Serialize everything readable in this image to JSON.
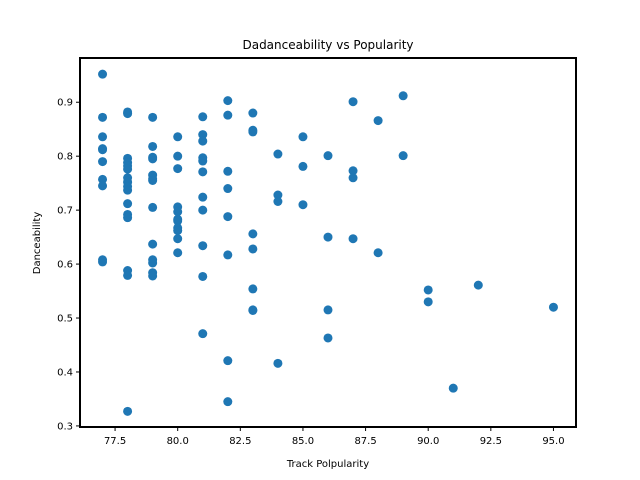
{
  "chart_data": {
    "type": "scatter",
    "title": "Dadanceability vs Popularity",
    "xlabel": "Track Polpularity",
    "ylabel": "Danceability",
    "xlim": [
      76.1,
      95.9
    ],
    "ylim": [
      0.298,
      0.982
    ],
    "xticks": [
      77.5,
      80.0,
      82.5,
      85.0,
      87.5,
      90.0,
      92.5,
      95.0
    ],
    "xtick_labels": [
      "77.5",
      "80.0",
      "82.5",
      "85.0",
      "87.5",
      "90.0",
      "92.5",
      "95.0"
    ],
    "yticks": [
      0.3,
      0.4,
      0.5,
      0.6,
      0.7,
      0.8,
      0.9
    ],
    "ytick_labels": [
      "0.3",
      "0.4",
      "0.5",
      "0.6",
      "0.7",
      "0.8",
      "0.9"
    ],
    "grid": false,
    "color": "#1f77b4",
    "points": [
      [
        77,
        0.952
      ],
      [
        77,
        0.872
      ],
      [
        77,
        0.836
      ],
      [
        77,
        0.814
      ],
      [
        77,
        0.812
      ],
      [
        77,
        0.79
      ],
      [
        77,
        0.757
      ],
      [
        77,
        0.745
      ],
      [
        77,
        0.608
      ],
      [
        77,
        0.604
      ],
      [
        78,
        0.882
      ],
      [
        78,
        0.879
      ],
      [
        78,
        0.796
      ],
      [
        78,
        0.788
      ],
      [
        78,
        0.782
      ],
      [
        78,
        0.776
      ],
      [
        78,
        0.76
      ],
      [
        78,
        0.752
      ],
      [
        78,
        0.744
      ],
      [
        78,
        0.737
      ],
      [
        78,
        0.712
      ],
      [
        78,
        0.692
      ],
      [
        78,
        0.686
      ],
      [
        78,
        0.588
      ],
      [
        78,
        0.579
      ],
      [
        78,
        0.327
      ],
      [
        79,
        0.872
      ],
      [
        79,
        0.818
      ],
      [
        79,
        0.798
      ],
      [
        79,
        0.795
      ],
      [
        79,
        0.765
      ],
      [
        79,
        0.758
      ],
      [
        79,
        0.755
      ],
      [
        79,
        0.705
      ],
      [
        79,
        0.637
      ],
      [
        79,
        0.608
      ],
      [
        79,
        0.602
      ],
      [
        79,
        0.584
      ],
      [
        79,
        0.578
      ],
      [
        80,
        0.836
      ],
      [
        80,
        0.8
      ],
      [
        80,
        0.777
      ],
      [
        80,
        0.706
      ],
      [
        80,
        0.697
      ],
      [
        80,
        0.683
      ],
      [
        80,
        0.68
      ],
      [
        80,
        0.667
      ],
      [
        80,
        0.662
      ],
      [
        80,
        0.647
      ],
      [
        80,
        0.621
      ],
      [
        81,
        0.873
      ],
      [
        81,
        0.84
      ],
      [
        81,
        0.828
      ],
      [
        81,
        0.797
      ],
      [
        81,
        0.791
      ],
      [
        81,
        0.771
      ],
      [
        81,
        0.724
      ],
      [
        81,
        0.7
      ],
      [
        81,
        0.634
      ],
      [
        81,
        0.577
      ],
      [
        81,
        0.471
      ],
      [
        82,
        0.903
      ],
      [
        82,
        0.876
      ],
      [
        82,
        0.772
      ],
      [
        82,
        0.74
      ],
      [
        82,
        0.688
      ],
      [
        82,
        0.617
      ],
      [
        82,
        0.421
      ],
      [
        82,
        0.345
      ],
      [
        83,
        0.88
      ],
      [
        83,
        0.848
      ],
      [
        83,
        0.845
      ],
      [
        83,
        0.656
      ],
      [
        83,
        0.628
      ],
      [
        83,
        0.554
      ],
      [
        83,
        0.515
      ],
      [
        83,
        0.514
      ],
      [
        84,
        0.804
      ],
      [
        84,
        0.728
      ],
      [
        84,
        0.716
      ],
      [
        84,
        0.416
      ],
      [
        85,
        0.836
      ],
      [
        85,
        0.781
      ],
      [
        85,
        0.71
      ],
      [
        86,
        0.801
      ],
      [
        86,
        0.65
      ],
      [
        86,
        0.515
      ],
      [
        86,
        0.463
      ],
      [
        87,
        0.901
      ],
      [
        87,
        0.773
      ],
      [
        87,
        0.76
      ],
      [
        87,
        0.647
      ],
      [
        88,
        0.866
      ],
      [
        88,
        0.621
      ],
      [
        89,
        0.912
      ],
      [
        89,
        0.801
      ],
      [
        90,
        0.552
      ],
      [
        90,
        0.53
      ],
      [
        91,
        0.37
      ],
      [
        92,
        0.561
      ],
      [
        95,
        0.52
      ]
    ]
  }
}
